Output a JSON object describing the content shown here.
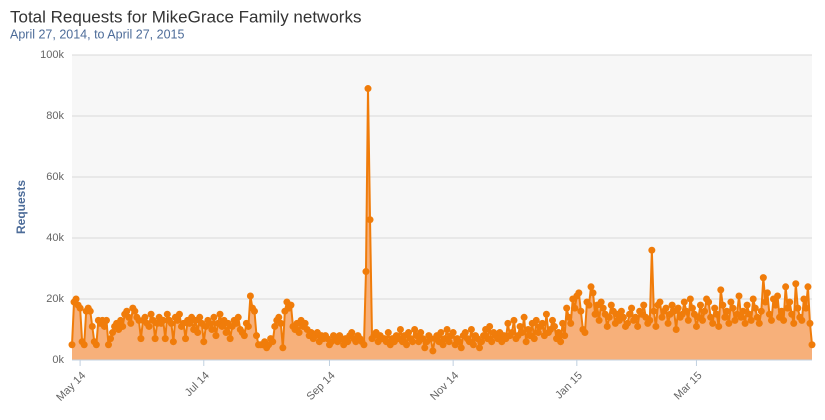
{
  "chart_data": {
    "type": "area",
    "title": "Total Requests for MikeGrace Family networks",
    "subtitle": "April 27, 2014, to April 27, 2015",
    "y_label": "Requests",
    "ylim": [
      0,
      100000
    ],
    "yticks": [
      {
        "value": 0,
        "label": "0k"
      },
      {
        "value": 20000,
        "label": "20k"
      },
      {
        "value": 40000,
        "label": "40k"
      },
      {
        "value": 60000,
        "label": "60k"
      },
      {
        "value": 80000,
        "label": "80k"
      },
      {
        "value": 100000,
        "label": "100k"
      }
    ],
    "grid": true,
    "color": "#f07c0a",
    "fill_color": "#f7b07a",
    "categories": [
      null,
      null,
      null,
      null,
      "May 14",
      null,
      null,
      null,
      null,
      null,
      null,
      null,
      null,
      null,
      null,
      null,
      null,
      null,
      null,
      null,
      null,
      null,
      null,
      null,
      null,
      null,
      null,
      null,
      null,
      null,
      null,
      null,
      null,
      null,
      null,
      null,
      null,
      null,
      null,
      null,
      null,
      null,
      null,
      null,
      null,
      null,
      null,
      null,
      null,
      null,
      null,
      null,
      null,
      null,
      null,
      null,
      null,
      null,
      null,
      null,
      null,
      null,
      null,
      null,
      null,
      "Jul 14",
      null,
      null,
      null,
      null,
      null,
      null,
      null,
      null,
      null,
      null,
      null,
      null,
      null,
      null,
      null,
      null,
      null,
      null,
      null,
      null,
      null,
      null,
      null,
      null,
      null,
      null,
      null,
      null,
      null,
      null,
      null,
      null,
      null,
      null,
      null,
      null,
      null,
      null,
      null,
      null,
      null,
      null,
      null,
      null,
      null,
      null,
      null,
      null,
      null,
      null,
      null,
      null,
      null,
      null,
      null,
      null,
      null,
      null,
      null,
      null,
      null,
      "Sep 14",
      null,
      null,
      null,
      null,
      null,
      null,
      null,
      null,
      null,
      null,
      null,
      null,
      null,
      null,
      null,
      null,
      null,
      null,
      null,
      null,
      null,
      null,
      null,
      null,
      null,
      null,
      null,
      null,
      null,
      null,
      null,
      null,
      null,
      null,
      null,
      null,
      null,
      null,
      null,
      null,
      null,
      null,
      null,
      null,
      null,
      null,
      null,
      null,
      null,
      null,
      null,
      null,
      null,
      null,
      null,
      null,
      null,
      null,
      null,
      null,
      "Nov 14",
      null,
      null,
      null,
      null,
      null,
      null,
      null,
      null,
      null,
      null,
      null,
      null,
      null,
      null,
      null,
      null,
      null,
      null,
      null,
      null,
      null,
      null,
      null,
      null,
      null,
      null,
      null,
      null,
      null,
      null,
      null,
      null,
      null,
      null,
      null,
      null,
      null,
      null,
      null,
      null,
      null,
      null,
      null,
      null,
      null,
      null,
      null,
      null,
      null,
      null,
      null,
      null,
      null,
      null,
      null,
      null,
      null,
      null,
      null,
      null,
      "Jan 15",
      null,
      null,
      null,
      null,
      null,
      null,
      null,
      null,
      null,
      null,
      null,
      null,
      null,
      null,
      null,
      null,
      null,
      null,
      null,
      null,
      null,
      null,
      null,
      null,
      null,
      null,
      null,
      null,
      null,
      null,
      null,
      null,
      null,
      null,
      null,
      null,
      null,
      null,
      null,
      null,
      null,
      null,
      null,
      null,
      null,
      null,
      null,
      null,
      null,
      null,
      null,
      null,
      null,
      null,
      null,
      null,
      null,
      null,
      "Mar 15",
      null,
      null,
      null,
      null,
      null,
      null,
      null,
      null,
      null,
      null,
      null,
      null,
      null,
      null,
      null,
      null,
      null,
      null,
      null,
      null,
      null,
      null,
      null,
      null,
      null,
      null,
      null,
      null,
      null,
      null,
      null,
      null,
      null,
      null,
      null,
      null,
      null,
      null,
      null,
      null,
      null,
      null,
      null,
      null,
      null,
      null,
      null,
      null,
      null,
      null,
      null,
      null,
      null,
      null,
      null,
      null,
      null
    ],
    "values": [
      5000,
      19000,
      20000,
      18000,
      17000,
      6000,
      5000,
      16000,
      17000,
      16000,
      11000,
      6000,
      5000,
      13000,
      12000,
      13000,
      11000,
      13000,
      5000,
      7000,
      9000,
      11000,
      12000,
      10000,
      13000,
      11000,
      15000,
      16000,
      14000,
      12000,
      17000,
      16000,
      14000,
      13000,
      7000,
      13000,
      14000,
      12000,
      11000,
      15000,
      13000,
      7000,
      12000,
      14000,
      12000,
      13000,
      7000,
      15000,
      13000,
      12000,
      6000,
      14000,
      13000,
      15000,
      11000,
      12000,
      7000,
      13000,
      12000,
      14000,
      10000,
      13000,
      9000,
      14000,
      12000,
      6000,
      11000,
      13000,
      12000,
      10000,
      14000,
      8000,
      12000,
      15000,
      11000,
      13000,
      9000,
      12000,
      7000,
      11000,
      13000,
      12000,
      14000,
      10000,
      9000,
      8000,
      12000,
      11000,
      21000,
      17000,
      16000,
      8000,
      5000,
      5000,
      5000,
      6000,
      4000,
      5000,
      7000,
      6000,
      11000,
      13000,
      14000,
      12000,
      4000,
      16000,
      19000,
      17000,
      18000,
      11000,
      10000,
      12000,
      9000,
      13000,
      11000,
      12000,
      10000,
      8000,
      9000,
      7000,
      8000,
      9000,
      6000,
      8000,
      7000,
      8000,
      7000,
      5000,
      6000,
      8000,
      7000,
      6000,
      8000,
      7000,
      5000,
      7000,
      6000,
      8000,
      9000,
      7000,
      6000,
      8000,
      7000,
      6000,
      5000,
      29000,
      89000,
      46000,
      7000,
      8000,
      9000,
      6000,
      8000,
      7000,
      7000,
      6000,
      9000,
      5000,
      7000,
      6000,
      8000,
      7000,
      10000,
      6000,
      8000,
      5000,
      9000,
      7000,
      6000,
      10000,
      8000,
      6000,
      9000,
      7000,
      4000,
      6000,
      8000,
      7000,
      3000,
      7000,
      8000,
      6000,
      9000,
      5000,
      7000,
      10000,
      6000,
      8000,
      9000,
      5000,
      7000,
      6000,
      4000,
      8000,
      9000,
      7000,
      6000,
      10000,
      5000,
      8000,
      7000,
      4000,
      6000,
      8000,
      10000,
      7000,
      11000,
      6000,
      9000,
      8000,
      7000,
      9000,
      6000,
      8000,
      7000,
      12000,
      8000,
      9000,
      13000,
      7000,
      8000,
      11000,
      9000,
      14000,
      6000,
      10000,
      8000,
      12000,
      7000,
      13000,
      9000,
      11000,
      12000,
      8000,
      15000,
      9000,
      10000,
      13000,
      11000,
      7000,
      9000,
      6000,
      12000,
      8000,
      17000,
      14000,
      12000,
      20000,
      17000,
      21000,
      22000,
      16000,
      10000,
      9000,
      19000,
      18000,
      24000,
      22000,
      15000,
      18000,
      13000,
      19000,
      17000,
      15000,
      11000,
      14000,
      18000,
      16000,
      12000,
      15000,
      13000,
      16000,
      14000,
      11000,
      12000,
      15000,
      17000,
      13000,
      14000,
      11000,
      16000,
      15000,
      18000,
      14000,
      12000,
      13000,
      36000,
      16000,
      11000,
      18000,
      19000,
      14000,
      16000,
      17000,
      12000,
      15000,
      18000,
      16000,
      10000,
      17000,
      14000,
      15000,
      19000,
      16000,
      13000,
      20000,
      17000,
      15000,
      11000,
      14000,
      18000,
      13000,
      16000,
      20000,
      19000,
      14000,
      12000,
      17000,
      15000,
      11000,
      23000,
      18000,
      14000,
      16000,
      12000,
      19000,
      17000,
      13000,
      15000,
      21000,
      14000,
      16000,
      12000,
      18000,
      15000,
      13000,
      20000,
      17000,
      14000,
      12000,
      16000,
      27000,
      19000,
      22000,
      15000,
      13000,
      20000,
      18000,
      21000,
      14000,
      16000,
      13000,
      24000,
      17000,
      19000,
      15000,
      12000,
      25000,
      17000,
      14000,
      13000,
      20000,
      17000,
      24000,
      12000,
      5000
    ]
  }
}
